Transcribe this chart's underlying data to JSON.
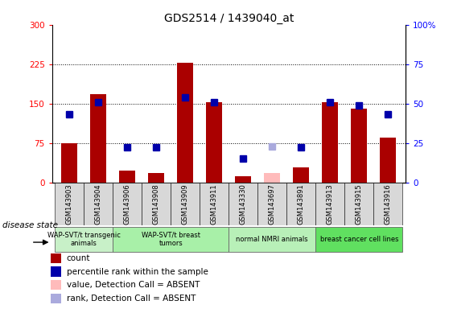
{
  "title": "GDS2514 / 1439040_at",
  "samples": [
    "GSM143903",
    "GSM143904",
    "GSM143906",
    "GSM143908",
    "GSM143909",
    "GSM143911",
    "GSM143330",
    "GSM143697",
    "GSM143891",
    "GSM143913",
    "GSM143915",
    "GSM143916"
  ],
  "count_values": [
    75,
    168,
    22,
    18,
    227,
    152,
    12,
    null,
    28,
    152,
    140,
    85
  ],
  "count_absent": [
    null,
    null,
    null,
    null,
    null,
    null,
    null,
    18,
    null,
    null,
    null,
    null
  ],
  "rank_values": [
    43,
    51,
    22,
    22,
    54,
    51,
    15,
    null,
    22,
    51,
    49,
    43
  ],
  "rank_absent": [
    null,
    null,
    null,
    null,
    null,
    null,
    null,
    23,
    null,
    null,
    null,
    null
  ],
  "groups": [
    {
      "label": "WAP-SVT/t transgenic\nanimals",
      "start": 0,
      "end": 2,
      "color": "#c8f0c8"
    },
    {
      "label": "WAP-SVT/t breast\ntumors",
      "start": 2,
      "end": 6,
      "color": "#a8f0a8"
    },
    {
      "label": "normal NMRI animals",
      "start": 6,
      "end": 9,
      "color": "#b8f0b8"
    },
    {
      "label": "breast cancer cell lines",
      "start": 9,
      "end": 12,
      "color": "#60e060"
    }
  ],
  "ylim_left": [
    0,
    300
  ],
  "ylim_right": [
    0,
    100
  ],
  "yticks_left": [
    0,
    75,
    150,
    225,
    300
  ],
  "yticks_right": [
    0,
    25,
    50,
    75,
    100
  ],
  "ytick_labels_left": [
    "0",
    "75",
    "150",
    "225",
    "300"
  ],
  "ytick_labels_right": [
    "0",
    "25",
    "50",
    "75",
    "100%"
  ],
  "hlines": [
    75,
    150,
    225
  ],
  "bar_color": "#aa0000",
  "bar_absent_color": "#ffbbbb",
  "rank_color": "#0000aa",
  "rank_absent_color": "#aaaadd",
  "bg_color": "#ffffff",
  "plot_bg": "#ffffff",
  "legend_items": [
    {
      "color": "#aa0000",
      "label": "count"
    },
    {
      "color": "#0000aa",
      "label": "percentile rank within the sample"
    },
    {
      "color": "#ffbbbb",
      "label": "value, Detection Call = ABSENT"
    },
    {
      "color": "#aaaadd",
      "label": "rank, Detection Call = ABSENT"
    }
  ]
}
